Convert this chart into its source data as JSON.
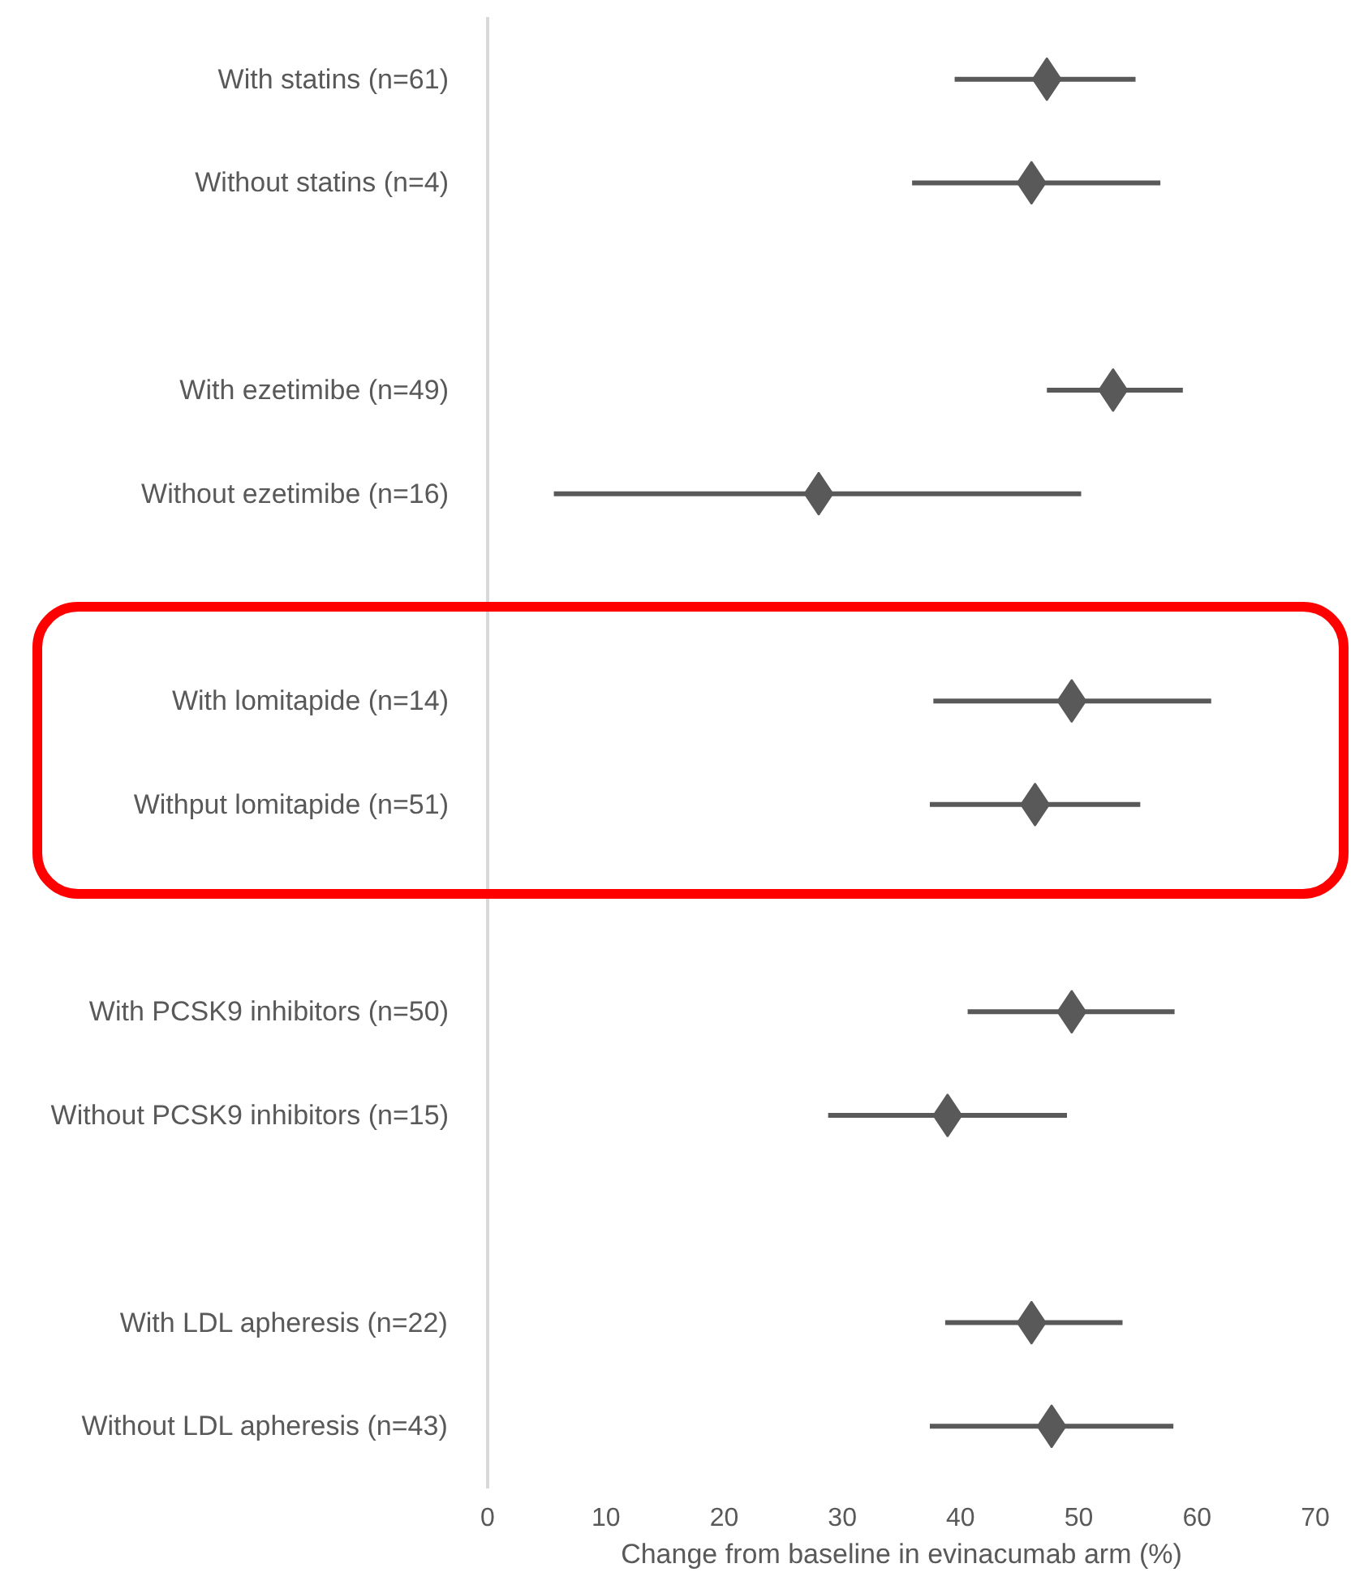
{
  "chart_data": {
    "type": "scatter",
    "orientation": "horizontal",
    "xlabel": "Change from baseline in evinacumab arm (%)",
    "categories": [
      "With statins (n=61)",
      "Without statins (n=4)",
      null,
      "With ezetimibe (n=49)",
      "Without ezetimibe (n=16)",
      null,
      "With lomitapide (n=14)",
      "Withput lomitapide (n=51)",
      null,
      "With PCSK9 inhibitors (n=50)",
      "Without PCSK9 inhibitors (n=15)",
      null,
      "With LDL apheresis (n=22)",
      "Without LDL apheresis (n=43)"
    ],
    "values": [
      47.3,
      46.0,
      null,
      52.9,
      28.0,
      null,
      49.4,
      46.3,
      null,
      49.4,
      38.9,
      null,
      46.0,
      47.7
    ],
    "errors": [
      [
        39.5,
        54.8
      ],
      [
        35.9,
        56.9
      ],
      null,
      [
        47.3,
        58.8
      ],
      [
        5.6,
        50.2
      ],
      null,
      [
        37.7,
        61.2
      ],
      [
        37.4,
        55.2
      ],
      null,
      [
        40.6,
        58.1
      ],
      [
        28.8,
        49.0
      ],
      null,
      [
        38.7,
        53.7
      ],
      [
        37.4,
        58.0
      ]
    ],
    "color": "#595959",
    "marker": "diamond",
    "xlim": [
      0,
      70
    ],
    "xticks": [
      0,
      10,
      20,
      30,
      40,
      50,
      60,
      70
    ],
    "grid": false
  }
}
